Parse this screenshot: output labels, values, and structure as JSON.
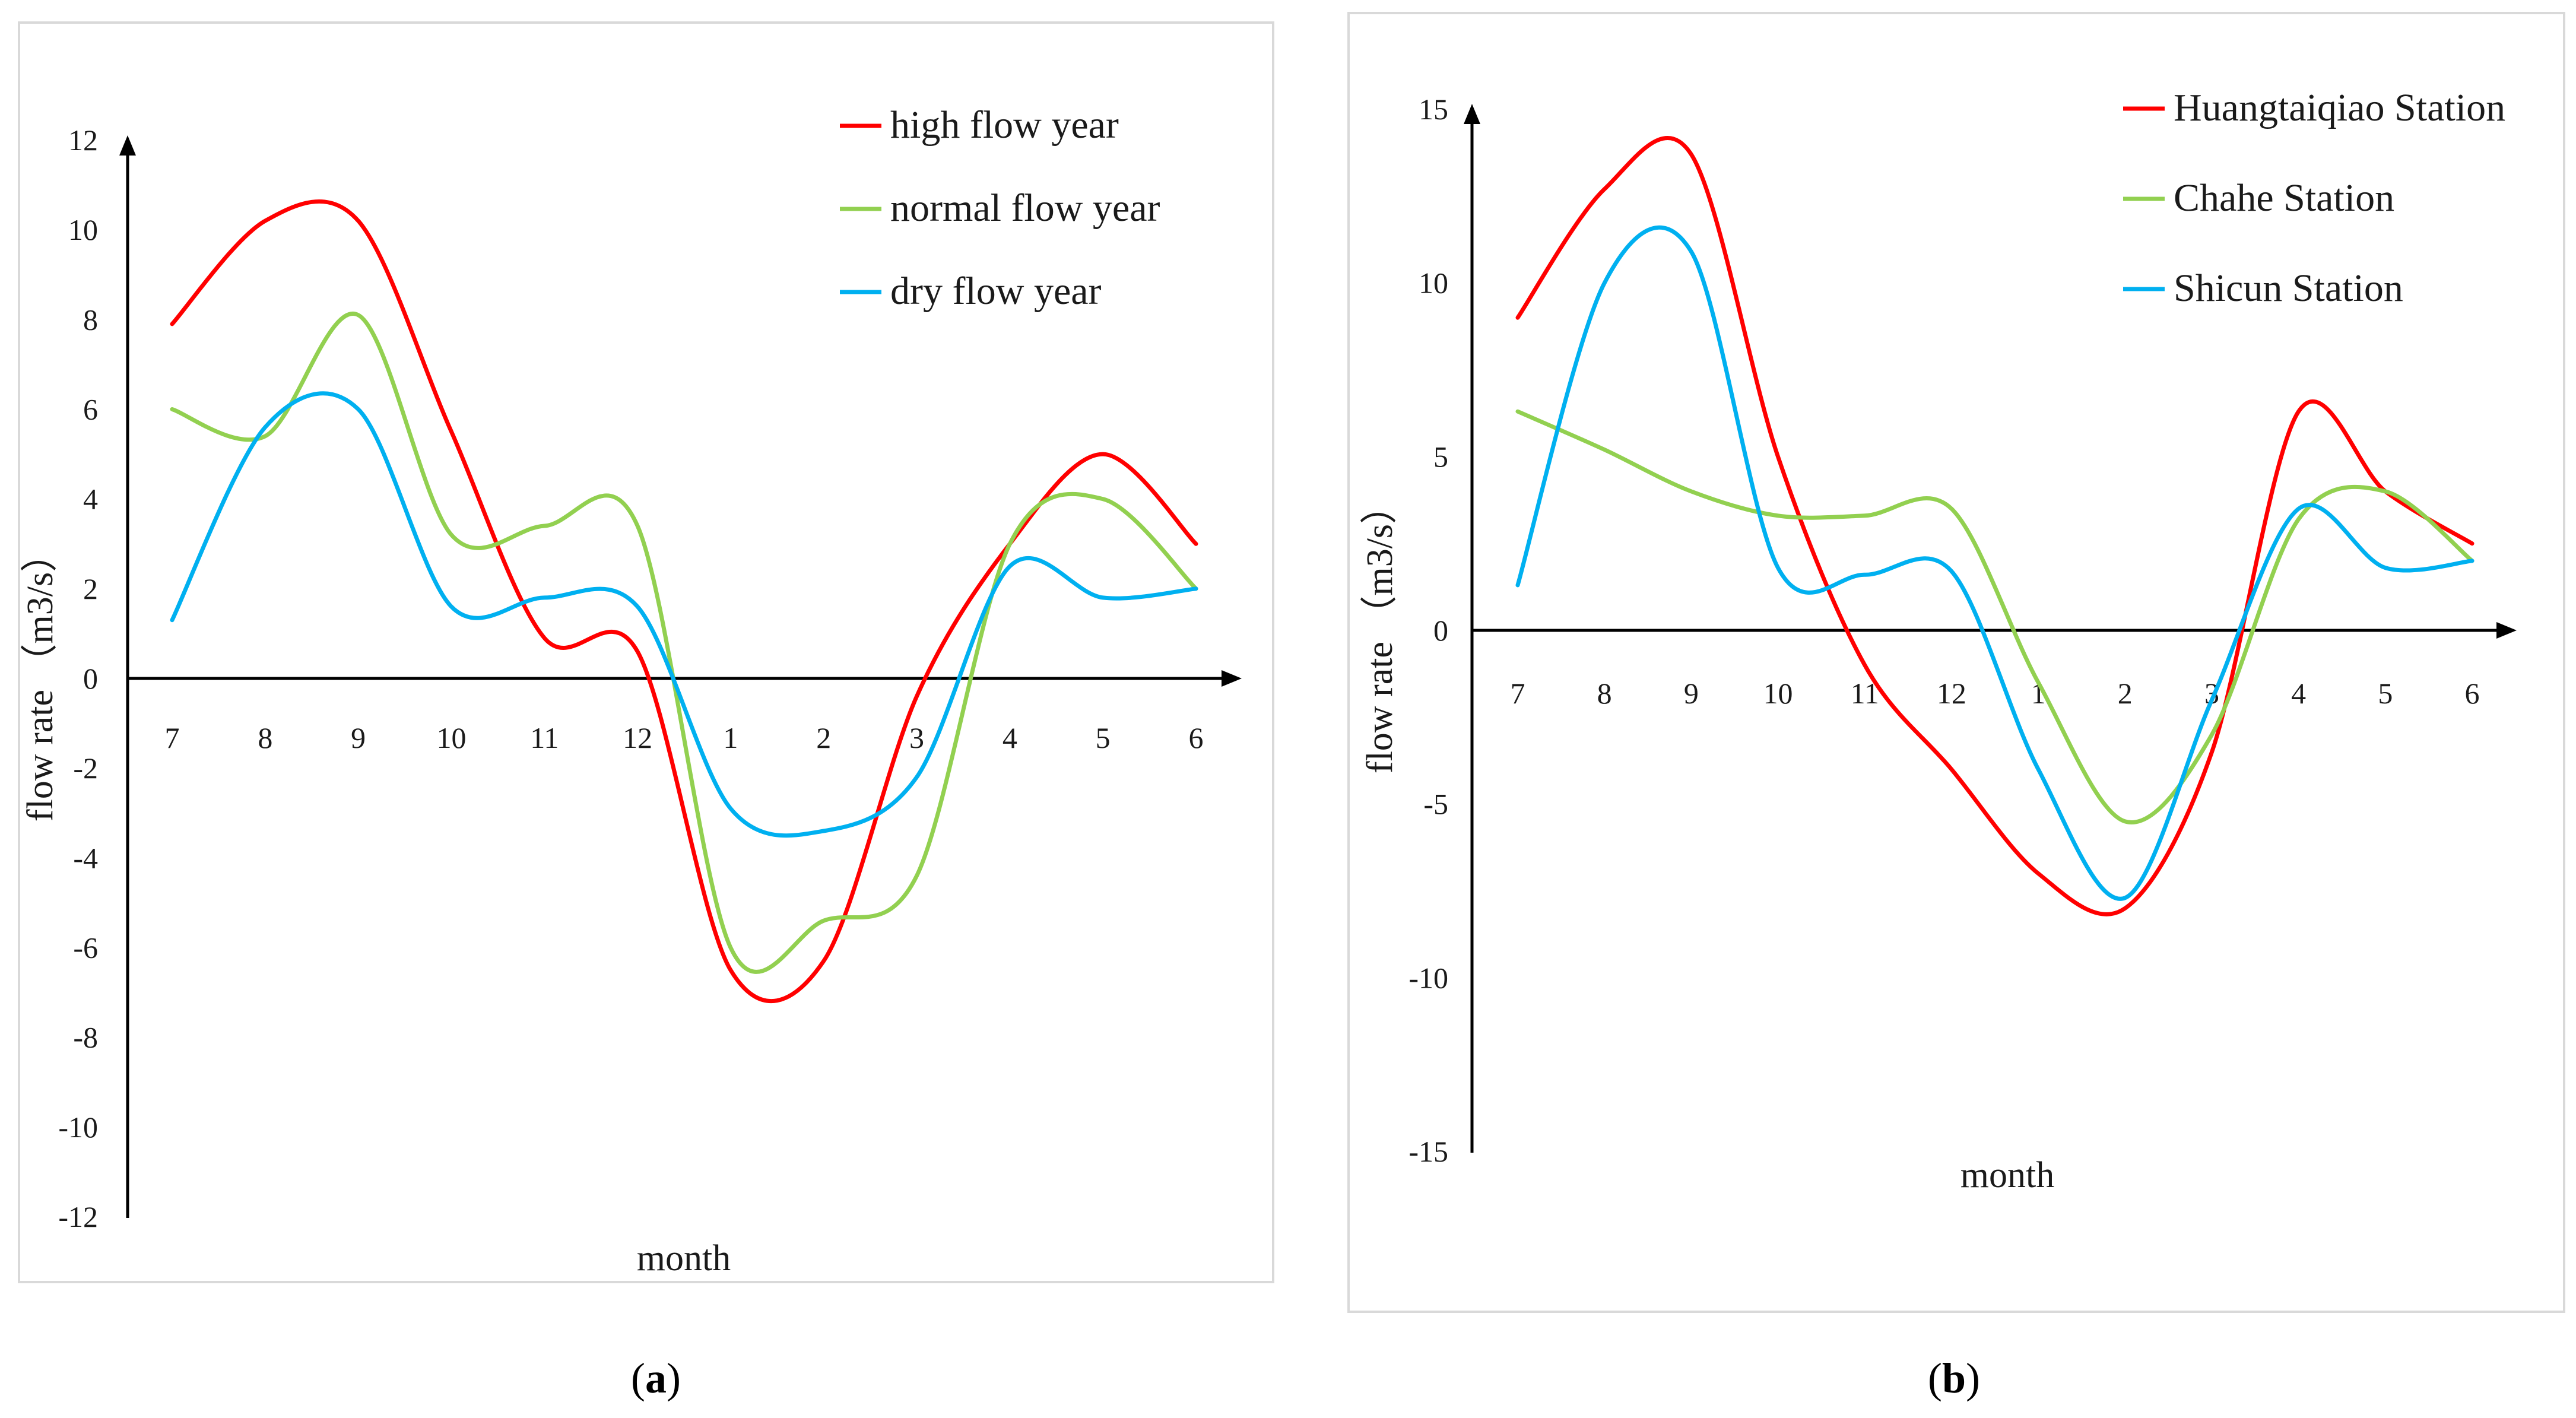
{
  "figure": {
    "captions": [
      {
        "open": "(",
        "letter": "a",
        "close": ")"
      },
      {
        "open": "(",
        "letter": "b",
        "close": ")"
      }
    ]
  },
  "chart_data": [
    {
      "type": "line",
      "title": "",
      "xlabel": "month",
      "ylabel": "flow  rate （m3/s）",
      "categories": [
        "7",
        "8",
        "9",
        "10",
        "11",
        "12",
        "1",
        "2",
        "3",
        "4",
        "5",
        "6"
      ],
      "ylim": [
        -12,
        12
      ],
      "yticks": [
        12,
        10,
        8,
        6,
        4,
        2,
        0,
        -2,
        -4,
        -6,
        -8,
        -10,
        -12
      ],
      "grid": false,
      "legend": "top-right",
      "series": [
        {
          "name": "high flow year",
          "color": "#ff0000",
          "values": [
            7.9,
            10.2,
            10.2,
            5.5,
            0.9,
            0.6,
            -6.5,
            -6.3,
            -0.4,
            3.0,
            5.0,
            3.0
          ]
        },
        {
          "name": "normal flow year",
          "color": "#92d050",
          "values": [
            6.0,
            5.4,
            8.1,
            3.2,
            3.4,
            3.4,
            -6.0,
            -5.4,
            -4.4,
            3.0,
            4.0,
            2.0
          ]
        },
        {
          "name": "dry flow year",
          "color": "#00b0f0",
          "values": [
            1.3,
            5.6,
            6.0,
            1.6,
            1.8,
            1.6,
            -2.9,
            -3.4,
            -2.2,
            2.5,
            1.8,
            2.0
          ]
        }
      ]
    },
    {
      "type": "line",
      "title": "",
      "xlabel": "month",
      "ylabel": "flow rate （m3/s）",
      "categories": [
        "7",
        "8",
        "9",
        "10",
        "11",
        "12",
        "1",
        "2",
        "3",
        "4",
        "5",
        "6"
      ],
      "ylim": [
        -15,
        15
      ],
      "yticks": [
        15,
        10,
        5,
        0,
        -5,
        -10,
        -15
      ],
      "grid": false,
      "legend": "top-right",
      "series": [
        {
          "name": "Huangtaiqiao Station",
          "color": "#ff0000",
          "values": [
            9.0,
            12.7,
            13.7,
            5.0,
            -1.0,
            -4.0,
            -7.0,
            -8.0,
            -3.5,
            6.3,
            4.0,
            2.5
          ]
        },
        {
          "name": "Chahe Station",
          "color": "#92d050",
          "values": [
            6.3,
            5.2,
            4.0,
            3.3,
            3.3,
            3.5,
            -1.5,
            -5.5,
            -3.0,
            3.2,
            4.0,
            2.0
          ]
        },
        {
          "name": "Shicun Station",
          "color": "#00b0f0",
          "values": [
            1.3,
            10.0,
            10.9,
            1.8,
            1.6,
            1.7,
            -4.0,
            -7.7,
            -2.0,
            3.5,
            1.8,
            2.0
          ]
        }
      ]
    }
  ]
}
